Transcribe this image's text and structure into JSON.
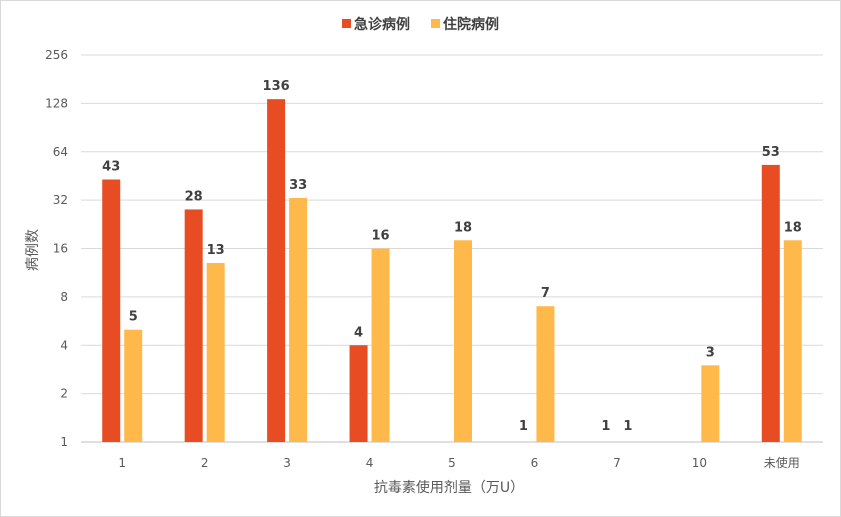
{
  "chart_data": {
    "type": "bar",
    "title": "",
    "xlabel": "抗毒素使用剂量（万U）",
    "ylabel": "病例数",
    "yscale": "log2",
    "ylim": [
      1,
      256
    ],
    "yticks": [
      "1",
      "2",
      "4",
      "8",
      "16",
      "32",
      "64",
      "128",
      "256"
    ],
    "categories": [
      "1",
      "2",
      "3",
      "4",
      "5",
      "6",
      "7",
      "10",
      "未使用"
    ],
    "legend_position": "top",
    "grid": true,
    "series": [
      {
        "name": "急诊病例",
        "color": "#E84C22",
        "values": [
          43,
          28,
          136,
          4,
          null,
          1,
          1,
          null,
          53
        ],
        "labels": [
          "43",
          "28",
          "136",
          "4",
          "",
          "1",
          "1",
          "",
          "53"
        ]
      },
      {
        "name": "住院病例",
        "color": "#FFB94A",
        "values": [
          5,
          13,
          33,
          16,
          18,
          7,
          1,
          3,
          18
        ],
        "labels": [
          "5",
          "13",
          "33",
          "16",
          "18",
          "7",
          "1",
          "3",
          "18"
        ]
      }
    ]
  }
}
